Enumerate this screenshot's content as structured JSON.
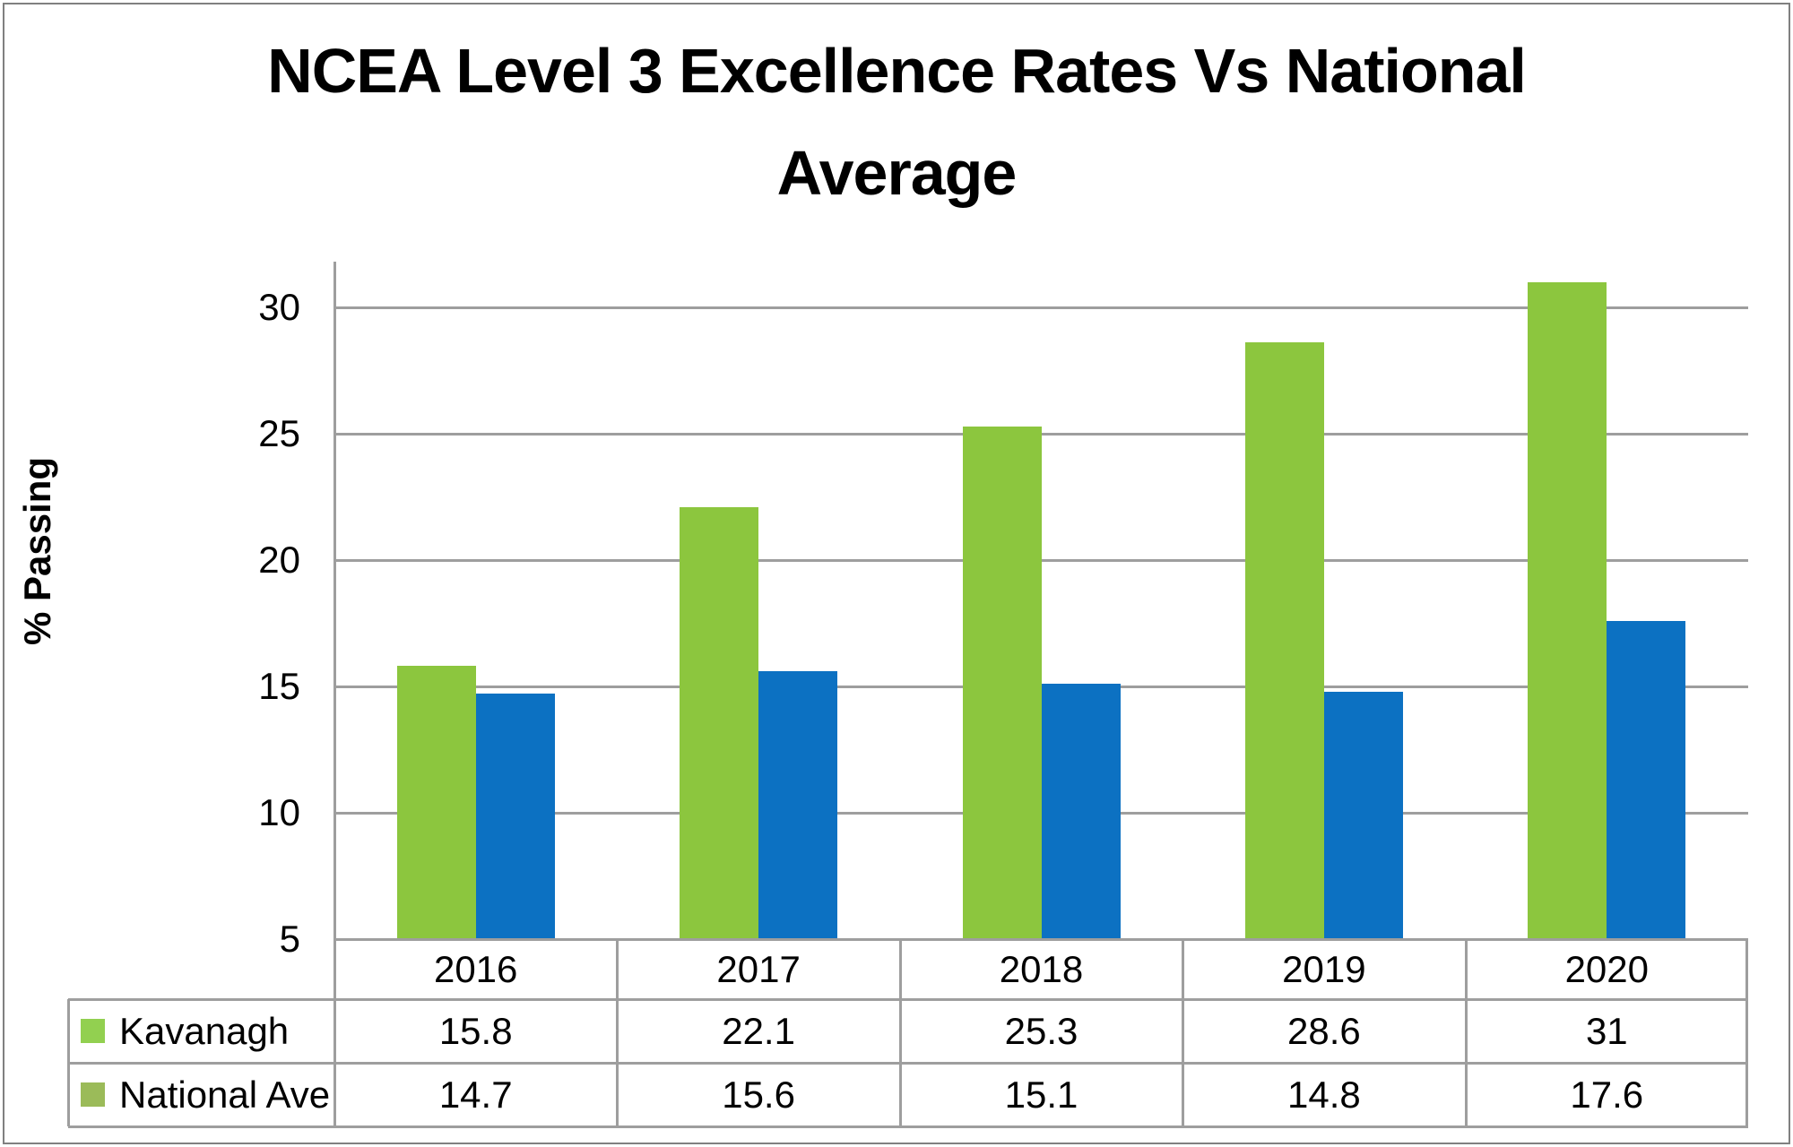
{
  "title": {
    "line1": "NCEA Level 3 Excellence Rates Vs National",
    "line2": "Average"
  },
  "y_axis": {
    "label": "% Passing"
  },
  "chart_data": {
    "type": "bar",
    "title": "NCEA Level 3 Excellence Rates Vs National Average",
    "xlabel": "",
    "ylabel": "% Passing",
    "categories": [
      "2016",
      "2017",
      "2018",
      "2019",
      "2020"
    ],
    "series": [
      {
        "name": "Kavanagh",
        "values": [
          15.8,
          22.1,
          25.3,
          28.6,
          31
        ],
        "bar_color": "#8CC63E",
        "legend_swatch_color": "#92D050"
      },
      {
        "name": "National Ave",
        "values": [
          14.7,
          15.6,
          15.1,
          14.8,
          17.6
        ],
        "bar_color": "#0C71C2",
        "legend_swatch_color": "#9BBB59"
      }
    ],
    "y_min": 5,
    "y_max": 31.8,
    "y_ticks": [
      5,
      10,
      15,
      20,
      25,
      30
    ],
    "grid": true,
    "legend_position": "data-table-left",
    "data_table_shown": true
  },
  "colors": {
    "grid": "#9E9E9E",
    "axis": "#9E9E9E",
    "table_border": "#9E9E9E",
    "frame_border": "#808080",
    "text": "#000000",
    "background": "#FFFFFF"
  }
}
